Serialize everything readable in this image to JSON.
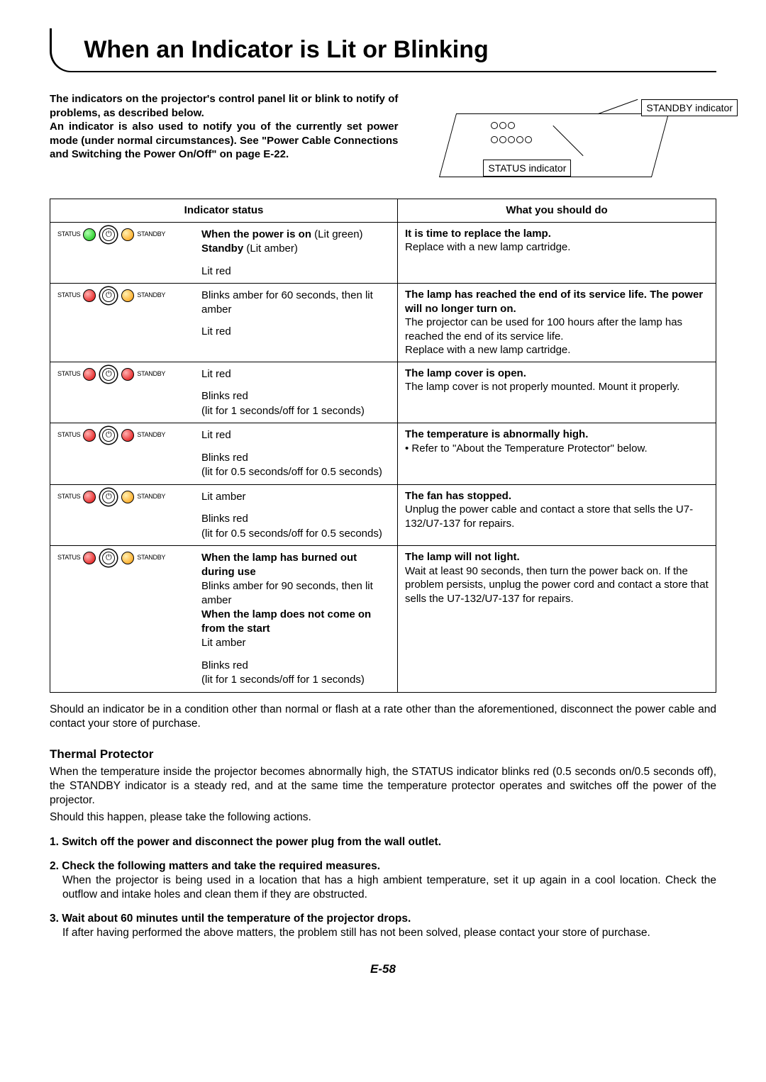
{
  "title": "When an Indicator is Lit or Blinking",
  "intro": "The indicators on the projector's control panel lit or blink to notify of problems, as described below.\nAn indicator is also used to notify you of the currently set power mode (under normal circumstances). See \"Power Cable Connections and Switching the Power On/Off\" on page E-22.",
  "diagram_labels": {
    "standby": "STANDBY indicator",
    "status": "STATUS indicator"
  },
  "table": {
    "headers": [
      "Indicator status",
      "What you should do"
    ],
    "rows": [
      {
        "leds": {
          "status": "green",
          "standby": "amber"
        },
        "status_html": "<p><b>When the power is on</b> (Lit green)</p><p><b>Standby</b> (Lit amber)</p><div class='gap'></div><p>Lit red</p>",
        "action_html": "<p><b>It is time to replace the lamp.</b></p><p>Replace with a new lamp cartridge.</p>"
      },
      {
        "leds": {
          "status": "red",
          "standby": "amber"
        },
        "status_html": "<p>Blinks amber for 60 seconds, then lit amber</p><div class='gap'></div><p>Lit red</p>",
        "action_html": "<p><b>The lamp has reached the end of its service life. The power will no longer turn on.</b></p><p>The projector can be used for 100 hours after the lamp has reached the end of its service life.</p><p>Replace with a new lamp cartridge.</p>"
      },
      {
        "leds": {
          "status": "red",
          "standby": "red"
        },
        "status_html": "<p>Lit red</p><div class='gap'></div><p>Blinks red</p><p>(lit for 1 seconds/off for 1 seconds)</p>",
        "action_html": "<p><b>The lamp cover is open.</b></p><p>The lamp cover is not properly mounted. Mount it properly.</p>"
      },
      {
        "leds": {
          "status": "red",
          "standby": "red"
        },
        "status_html": "<p>Lit red</p><div class='gap'></div><p>Blinks red</p><p>(lit for 0.5 seconds/off for 0.5 seconds)</p>",
        "action_html": "<p><b>The temperature is abnormally high.</b></p><p>•  Refer to \"About the Temperature Protector\" below.</p>"
      },
      {
        "leds": {
          "status": "red",
          "standby": "amber"
        },
        "status_html": "<p>Lit amber</p><div class='gap'></div><p>Blinks red</p><p>(lit for 0.5 seconds/off for 0.5 seconds)</p>",
        "action_html": "<p><b>The fan has stopped.</b></p><p>Unplug the power cable and contact a store that sells the U7-132/U7-137 for repairs.</p>"
      },
      {
        "leds": {
          "status": "red",
          "standby": "amber"
        },
        "status_html": "<p><b>When the lamp has burned out during use</b></p><p>Blinks amber for 90 seconds, then lit amber</p><p><b>When the lamp does not come on from the start</b></p><p>Lit amber</p><div class='gap'></div><p>Blinks red</p><p>(lit for 1 seconds/off for 1 seconds)</p>",
        "action_html": "<p><b>The lamp will not light.</b></p><p>Wait at least 90 seconds, then turn the power back on. If the problem persists, unplug the power cord and contact a store that sells the U7-132/U7-137 for repairs.</p>"
      }
    ]
  },
  "below_table": "Should an indicator be in a condition other than normal or flash at a rate other than the aforementioned, disconnect the power cable and contact your store of purchase.",
  "thermal": {
    "heading": "Thermal Protector",
    "body1": "When the temperature inside the projector becomes abnormally high, the STATUS indicator blinks red (0.5 seconds on/0.5 seconds off), the STANDBY indicator is a steady red, and at the same time the temperature protector operates and switches off the power of the projector.",
    "body2": "Should this happen, please take the following actions.",
    "steps": [
      {
        "head": "1. Switch off the power and disconnect the power plug from the wall outlet.",
        "sub": ""
      },
      {
        "head": "2. Check the following matters and take the required measures.",
        "sub": "When the projector is being used in a location that has a high ambient temperature, set it up again in a cool location. Check the outflow and intake holes and clean them if they are obstructed."
      },
      {
        "head": "3. Wait about 60 minutes until the temperature of the projector drops.",
        "sub": "If after having performed the above matters, the problem still has not been solved, please contact your store of purchase."
      }
    ]
  },
  "page_number": "E-58",
  "colors": {
    "green": "#00c000",
    "amber": "#ff9800",
    "red": "#e00000",
    "text": "#000000",
    "bg": "#ffffff"
  }
}
